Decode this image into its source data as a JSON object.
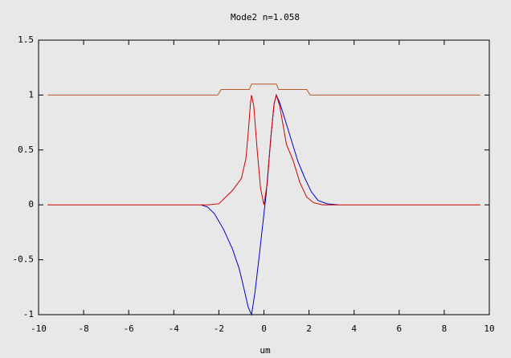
{
  "chart_data": {
    "type": "line",
    "title": "Mode2 n=1.058",
    "x_label": "um",
    "xlim": [
      -10,
      10
    ],
    "xticks": [
      -10,
      -8,
      -6,
      -4,
      -2,
      0,
      2,
      4,
      6,
      8,
      10
    ],
    "ylim": [
      -1,
      1.5
    ],
    "yticks": [
      -1,
      -0.5,
      0,
      0.5,
      1,
      1.5
    ],
    "grid": false,
    "series": [
      {
        "color": "#b8562c",
        "x": [
          -9.6,
          -2.05,
          -1.9,
          -0.65,
          -0.55,
          0.55,
          0.65,
          1.9,
          2.05,
          9.6
        ],
        "values": [
          1,
          1,
          1.05,
          1.05,
          1.1,
          1.1,
          1.05,
          1.05,
          1,
          1
        ]
      },
      {
        "color": "#0000cc",
        "x": [
          -2.8,
          -2.5,
          -2.2,
          -1.8,
          -1.4,
          -1.1,
          -0.9,
          -0.7,
          -0.55,
          -0.4,
          -0.2,
          0,
          0.1,
          0.3,
          0.45,
          0.55,
          0.7,
          0.9,
          1.2,
          1.5,
          1.8,
          2.1,
          2.4,
          2.8,
          3.3
        ],
        "values": [
          0,
          -0.02,
          -0.08,
          -0.22,
          -0.4,
          -0.58,
          -0.75,
          -0.93,
          -1,
          -0.8,
          -0.45,
          -0.08,
          0.1,
          0.6,
          0.92,
          1,
          0.93,
          0.8,
          0.6,
          0.4,
          0.25,
          0.12,
          0.04,
          0.01,
          0
        ]
      },
      {
        "color": "#cc0000",
        "x": [
          -9.6,
          -2.5,
          -2,
          -1.4,
          -1,
          -0.8,
          -0.7,
          -0.6,
          -0.55,
          -0.45,
          -0.3,
          -0.15,
          0,
          0.15,
          0.3,
          0.45,
          0.55,
          0.7,
          1,
          1.3,
          1.6,
          1.9,
          2.2,
          2.6,
          9.6
        ],
        "values": [
          0,
          0,
          0.01,
          0.13,
          0.24,
          0.42,
          0.65,
          0.92,
          1,
          0.9,
          0.5,
          0.15,
          0,
          0.2,
          0.6,
          0.92,
          1,
          0.9,
          0.55,
          0.4,
          0.2,
          0.07,
          0.02,
          0,
          0
        ]
      }
    ]
  }
}
